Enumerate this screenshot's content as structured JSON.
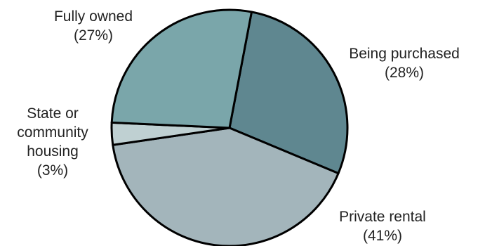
{
  "chart_data": {
    "type": "pie",
    "slices": [
      {
        "label": "Being purchased",
        "percent_label": "(28%)",
        "value": 28,
        "color": "#5f8790"
      },
      {
        "label": "Private rental",
        "percent_label": "(41%)",
        "value": 41,
        "color": "#a3b5bb"
      },
      {
        "label": "State or community housing",
        "label_lines": [
          "State or",
          "community",
          "housing"
        ],
        "percent_label": "(3%)",
        "value": 3,
        "color": "#bfd0d2"
      },
      {
        "label": "Fully owned",
        "percent_label": "(27%)",
        "value": 27,
        "color": "#7aa6aa"
      }
    ]
  }
}
